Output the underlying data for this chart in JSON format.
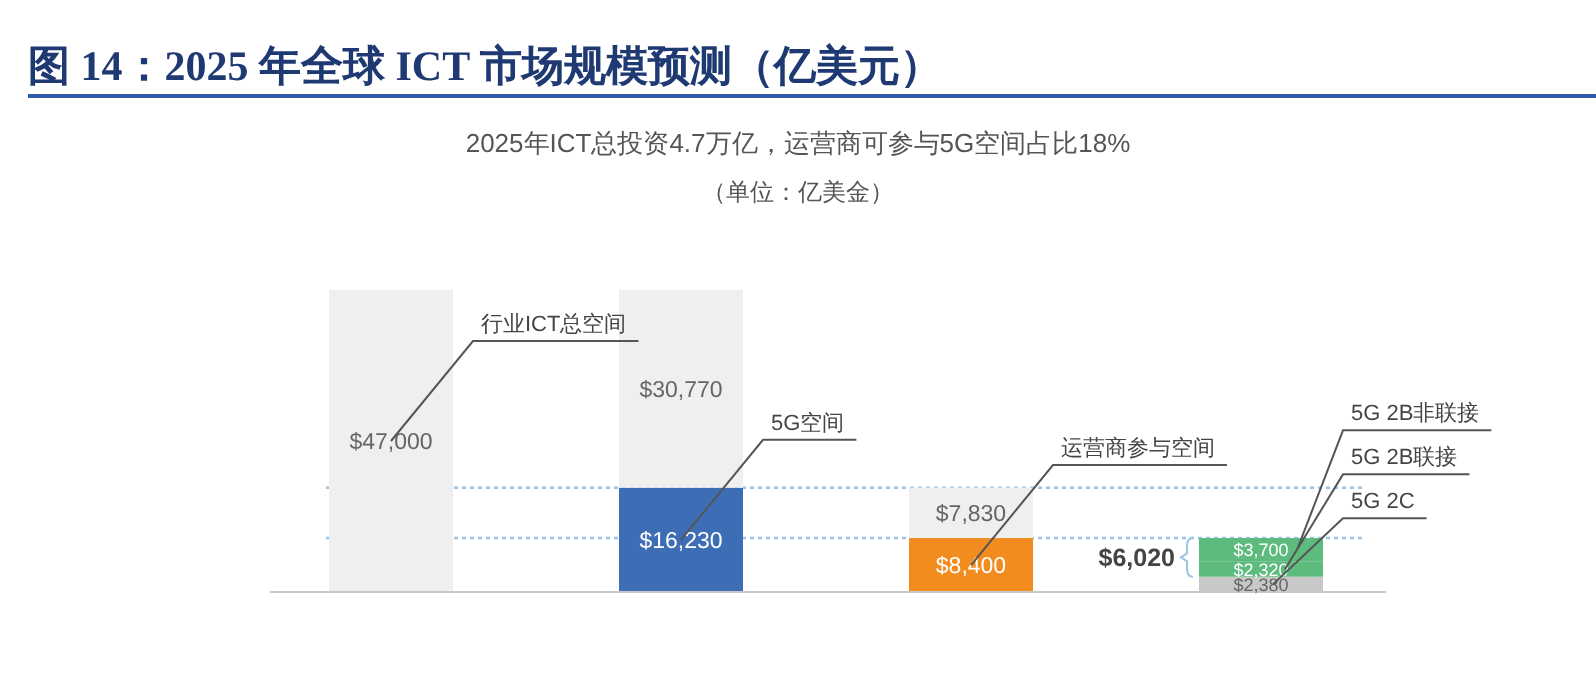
{
  "chart_data": {
    "type": "bar",
    "stacked": true,
    "title": "图 14：2025 年全球 ICT 市场规模预测（亿美元）",
    "subtitle": "2025年ICT总投资4.7万亿，运营商可参与5G空间占比18%",
    "annotations": [
      "（单位：亿美金）",
      "$6,020"
    ],
    "categories": [
      null,
      null,
      null,
      null
    ],
    "series": [
      {
        "name": "行业ICT总空间",
        "color": "#efefef",
        "values": [
          47000,
          null,
          null,
          null
        ],
        "value_labels": [
          "$47,000",
          null,
          null,
          null
        ]
      },
      {
        "name": "5G空间",
        "color": "#3d6db5",
        "values": [
          null,
          16230,
          null,
          null
        ],
        "value_labels": [
          null,
          "$16,230",
          null,
          null
        ]
      },
      {
        "name": "运营商参与空间",
        "color": "#f28c1e",
        "values": [
          null,
          null,
          8400,
          null
        ],
        "value_labels": [
          null,
          null,
          "$8,400",
          null
        ]
      },
      {
        "name": "5G 2C",
        "color": "#c8c8c8",
        "values": [
          null,
          null,
          null,
          2380
        ],
        "value_labels": [
          null,
          null,
          null,
          "$2,380"
        ]
      },
      {
        "name": "5G 2B联接",
        "color": "#5dbb7e",
        "values": [
          null,
          null,
          null,
          2320
        ],
        "value_labels": [
          null,
          null,
          null,
          "$2,320"
        ]
      },
      {
        "name": "5G 2B非联接",
        "color": "#5dbb7e",
        "values": [
          null,
          null,
          null,
          3700
        ],
        "value_labels": [
          null,
          null,
          null,
          "$3,700"
        ]
      },
      {
        "color": "#efefef",
        "values": [
          null,
          30770,
          7830,
          null
        ],
        "value_labels": [
          null,
          "$30,770",
          "$7,830",
          null
        ]
      }
    ],
    "ref_lines": [
      {
        "axis": "y",
        "value": 16230,
        "color": "#9dc3e6",
        "line_style": "dotted"
      },
      {
        "axis": "y",
        "value": 8400,
        "color": "#9dc3e6",
        "line_style": "dotted"
      }
    ]
  }
}
